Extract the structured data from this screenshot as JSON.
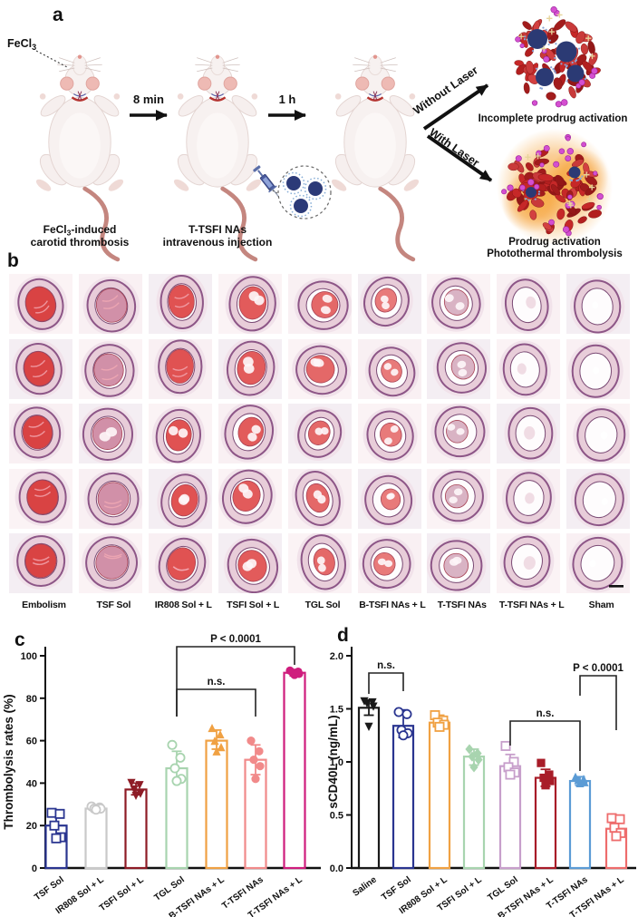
{
  "figure": {
    "panel_a": {
      "label": "a",
      "fecl3": {
        "pre": "FeCl",
        "sub": "3"
      },
      "arrow1_label": "8 min",
      "arrow2_label": "1 h",
      "caption1": {
        "pre": "FeCl",
        "sub": "3",
        "post": "-induced",
        "line2": "carotid thrombosis"
      },
      "caption2": {
        "line1": "T-TSFI NAs",
        "line2": "intravenous injection"
      },
      "branch_top": "Without Laser",
      "branch_bottom": "With Laser",
      "outcome_top": "Incomplete prodrug activation",
      "outcome_bottom_line1": "Prodrug activation",
      "outcome_bottom_line2": "Photothermal thrombolysis"
    },
    "panel_b": {
      "label": "b",
      "has_scale_bar": true,
      "columns": [
        {
          "label": "Embolism",
          "clot_color": "#d94343",
          "fill_levels": [
            0.97,
            0.95,
            0.9,
            0.95,
            0.92
          ]
        },
        {
          "label": "TSF Sol",
          "clot_color": "#d190a8",
          "fill_levels": [
            0.88,
            0.8,
            0.78,
            0.82,
            0.85
          ]
        },
        {
          "label": "IR808 Sol + L",
          "clot_color": "#e05252",
          "fill_levels": [
            0.8,
            0.85,
            0.72,
            0.75,
            0.8
          ]
        },
        {
          "label": "TSFI Sol + L",
          "clot_color": "#e25b5b",
          "fill_levels": [
            0.75,
            0.78,
            0.6,
            0.68,
            0.72
          ]
        },
        {
          "label": "TGL Sol",
          "clot_color": "#e46868",
          "fill_levels": [
            0.62,
            0.68,
            0.55,
            0.58,
            0.5
          ]
        },
        {
          "label": "B-TSFI NAs + L",
          "clot_color": "#e87a7a",
          "fill_levels": [
            0.5,
            0.45,
            0.48,
            0.38,
            0.45
          ]
        },
        {
          "label": "T-TSFI NAs",
          "clot_color": "#d9b3c4",
          "fill_levels": [
            0.55,
            0.5,
            0.42,
            0.45,
            0.5
          ]
        },
        {
          "label": "T-TSFI NAs + L",
          "clot_color": "#f0dce4",
          "fill_levels": [
            0.12,
            0.1,
            0.14,
            0.1,
            0.15
          ]
        },
        {
          "label": "Sham",
          "clot_color": "#ffffff",
          "fill_levels": [
            0.04,
            0.04,
            0.05,
            0.04,
            0.04
          ]
        }
      ]
    },
    "panel_c_label": "c",
    "panel_d_label": "d"
  },
  "chart_data": [
    {
      "id": "c",
      "type": "bar",
      "ylabel": "Thrombolysis rates (%)",
      "ylim": [
        0,
        100
      ],
      "yticks": [
        0,
        20,
        40,
        60,
        80,
        100
      ],
      "ytick_labels": [
        "0",
        "20",
        "40",
        "60",
        "80",
        "100"
      ],
      "categories": [
        "TSF Sol",
        "IR808 Sol + L",
        "TSFI Sol + L",
        "TGL Sol",
        "B-TSFI NAs + L",
        "T-TSFI NAs",
        "T-TSFI NAs + L"
      ],
      "values": [
        20,
        28,
        37,
        47,
        60,
        51,
        92
      ],
      "err_low": [
        14,
        26.5,
        34.5,
        41,
        56,
        44,
        90.5
      ],
      "err_high": [
        26,
        29.5,
        40,
        55,
        65,
        58,
        93.5
      ],
      "bar_colors": [
        "#2a3590",
        "#c9c9c9",
        "#8e1c26",
        "#a8d4af",
        "#f0a143",
        "#f18a8a",
        "#cf1d7d"
      ],
      "markers": [
        "sq-o",
        "ci-o",
        "tri-d",
        "ci-o",
        "tri-u",
        "ci-f",
        "ci-f"
      ],
      "points": [
        [
          26,
          25.5,
          20,
          14.5,
          14
        ],
        [
          29,
          28.5,
          28,
          28,
          27.5
        ],
        [
          40,
          39,
          37,
          35,
          34
        ],
        [
          58,
          52,
          47,
          42,
          41
        ],
        [
          66,
          63,
          60,
          57,
          55
        ],
        [
          60,
          55,
          51,
          48,
          42
        ],
        [
          93,
          92.5,
          92,
          91.5,
          91
        ]
      ],
      "annotations": [
        {
          "text": "P < 0.0001",
          "from": 3,
          "to": 6,
          "line_y": 23,
          "drop1": 100,
          "drop2": 43
        },
        {
          "text": "n.s.",
          "from": 3,
          "to": 5,
          "line_y": 70,
          "drop1": 100,
          "drop2": 100
        }
      ]
    },
    {
      "id": "d",
      "type": "bar",
      "ylabel": "sCD40L (ng/mL)",
      "ylim": [
        0,
        2.0
      ],
      "yticks": [
        0,
        0.5,
        1.0,
        1.5,
        2.0
      ],
      "ytick_labels": [
        "0.0",
        "0.5",
        "1.0",
        "1.5",
        "2.0"
      ],
      "categories": [
        "Saline",
        "TSF Sol",
        "IR808 Sol + L",
        "TSFI Sol + L",
        "TGL Sol",
        "B-TSFI NAs + L",
        "T-TSFI NAs",
        "T-TSFI NAs + L"
      ],
      "values": [
        1.51,
        1.34,
        1.37,
        1.05,
        0.96,
        0.85,
        0.82,
        0.37
      ],
      "err_low": [
        1.44,
        1.23,
        1.31,
        0.97,
        0.86,
        0.77,
        0.78,
        0.3
      ],
      "err_high": [
        1.58,
        1.49,
        1.44,
        1.12,
        1.07,
        0.93,
        0.86,
        0.46
      ],
      "bar_colors": [
        "#1a1a1a",
        "#2a3590",
        "#f0a143",
        "#a8d4af",
        "#c79fcb",
        "#a81c28",
        "#5b9bd5",
        "#ee6c6c"
      ],
      "markers": [
        "tri-d",
        "ci-o",
        "sq-o",
        "di-f",
        "sq-o",
        "sq-f",
        "tri-u",
        "sq-o"
      ],
      "points": [
        [
          1.57,
          1.56,
          1.55,
          1.52,
          1.33
        ],
        [
          1.47,
          1.45,
          1.3,
          1.27,
          1.25
        ],
        [
          1.44,
          1.39,
          1.37,
          1.35,
          1.33
        ],
        [
          1.12,
          1.08,
          1.05,
          1.02,
          0.95
        ],
        [
          1.15,
          1.0,
          0.95,
          0.9,
          0.88
        ],
        [
          0.99,
          0.88,
          0.85,
          0.82,
          0.78
        ],
        [
          0.86,
          0.84,
          0.83,
          0.81,
          0.8
        ],
        [
          0.47,
          0.46,
          0.38,
          0.33,
          0.3
        ]
      ],
      "annotations": [
        {
          "text": "n.s.",
          "from": 0,
          "to": 1,
          "line_y": 52,
          "drop1": 75,
          "drop2": 72
        },
        {
          "text": "n.s.",
          "from": 4,
          "to": 6,
          "line_y": 105,
          "drop1": 132,
          "drop2": 160
        },
        {
          "text": "P < 0.0001",
          "from": 6,
          "to": 7,
          "line_y": 55,
          "drop1": 77,
          "drop2": 115
        }
      ]
    }
  ]
}
